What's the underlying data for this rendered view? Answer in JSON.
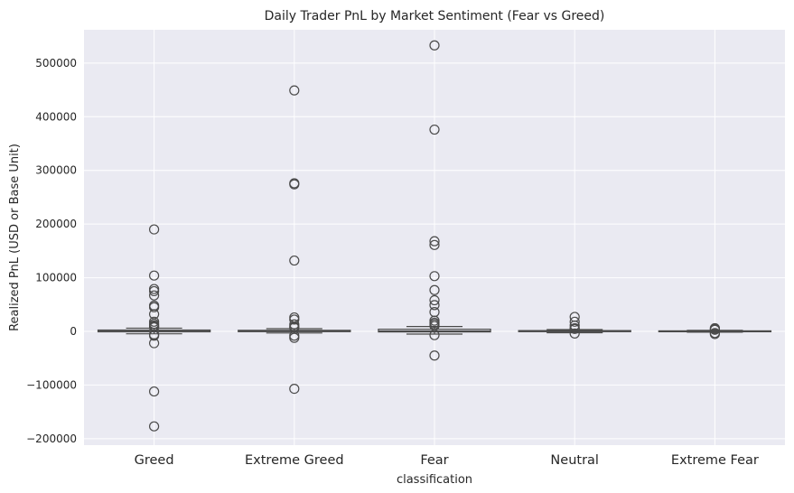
{
  "chart_data": {
    "type": "box",
    "title": "Daily Trader PnL by Market Sentiment (Fear vs Greed)",
    "xlabel": "classification",
    "ylabel": "Realized PnL (USD or Base Unit)",
    "ylim": [
      -212000,
      562000
    ],
    "yticks": [
      -200000,
      -100000,
      0,
      100000,
      200000,
      300000,
      400000,
      500000
    ],
    "ytick_labels": [
      "−200000",
      "−100000",
      "0",
      "100000",
      "200000",
      "300000",
      "400000",
      "500000"
    ],
    "grid": true,
    "categories": [
      "Greed",
      "Extreme Greed",
      "Fear",
      "Neutral",
      "Extreme Fear"
    ],
    "box_color": "#4a4a4a",
    "background": "#eaeaf2",
    "boxes": [
      {
        "category": "Greed",
        "q1": -800,
        "median": 300,
        "q3": 2500,
        "whisker_low": -4500,
        "whisker_high": 6000,
        "outliers": [
          190000,
          104000,
          79000,
          75000,
          67000,
          48000,
          45000,
          32000,
          18000,
          14000,
          11000,
          9000,
          7500,
          -6000,
          -8000,
          -22000,
          -112000,
          -177000
        ]
      },
      {
        "category": "Extreme Greed",
        "q1": -500,
        "median": 200,
        "q3": 2000,
        "whisker_low": -3000,
        "whisker_high": 5000,
        "outliers": [
          449000,
          276000,
          274000,
          132000,
          26000,
          22000,
          13000,
          9000,
          7000,
          -8000,
          -12000,
          -107000
        ]
      },
      {
        "category": "Fear",
        "q1": -1000,
        "median": 500,
        "q3": 4000,
        "whisker_low": -5000,
        "whisker_high": 9000,
        "outliers": [
          533000,
          376000,
          168000,
          161000,
          103000,
          77000,
          58000,
          49000,
          36000,
          20000,
          16000,
          13000,
          10000,
          -7000,
          -45000
        ]
      },
      {
        "category": "Neutral",
        "q1": -500,
        "median": 100,
        "q3": 1500,
        "whisker_low": -2500,
        "whisker_high": 3500,
        "outliers": [
          27000,
          18000,
          11000,
          6000,
          4500,
          -4000
        ]
      },
      {
        "category": "Extreme Fear",
        "q1": -300,
        "median": 100,
        "q3": 1000,
        "whisker_low": -1500,
        "whisker_high": 2000,
        "outliers": [
          6000,
          4500,
          3000,
          -3000,
          -5000
        ]
      }
    ]
  }
}
